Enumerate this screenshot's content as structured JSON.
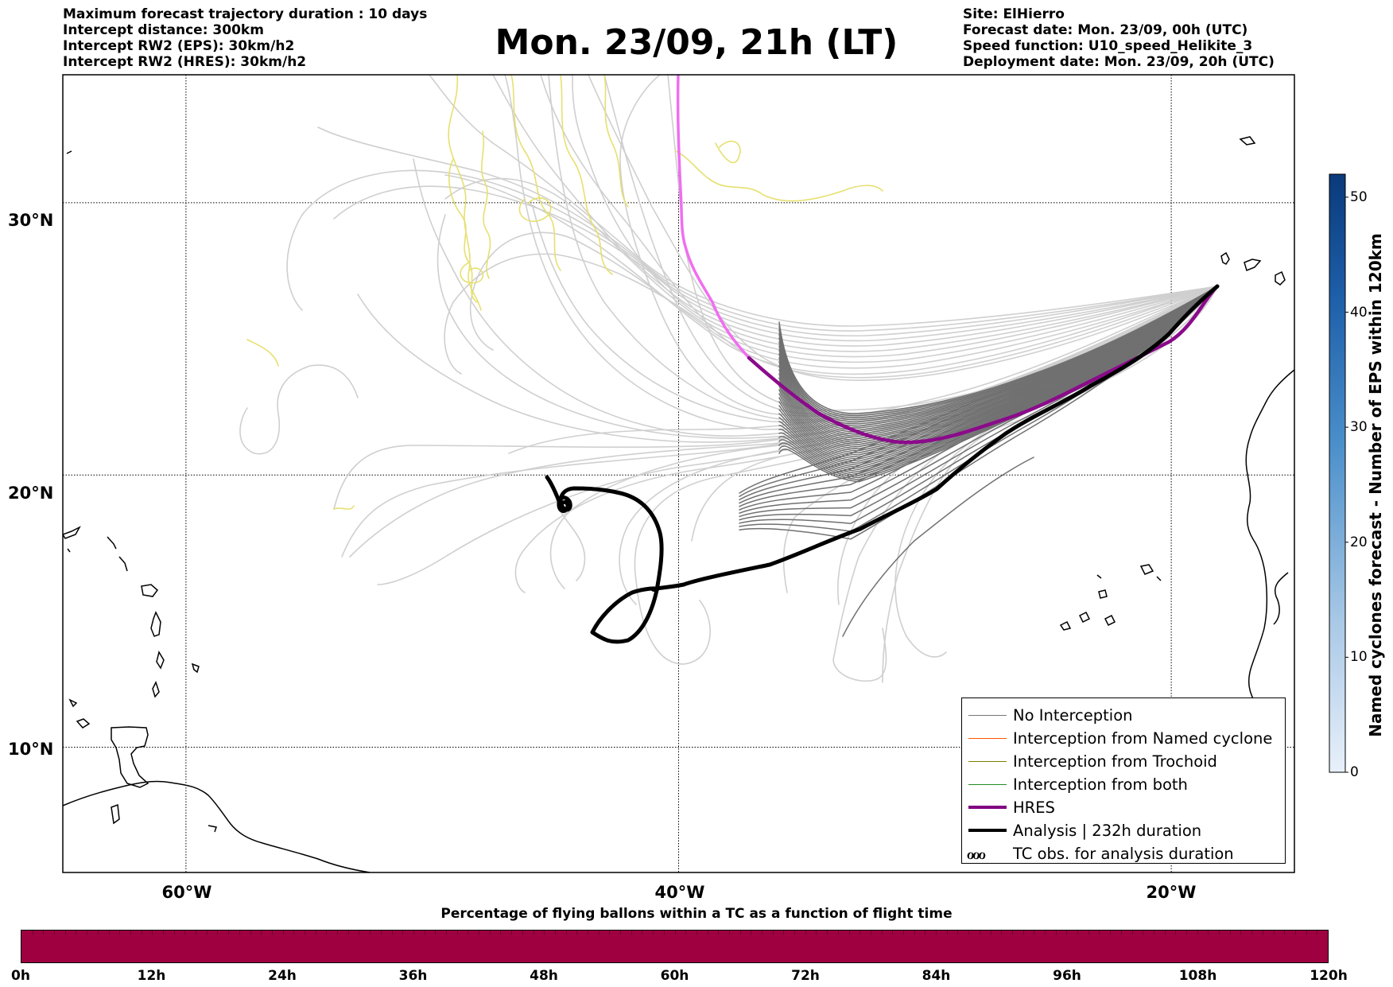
{
  "header": {
    "left": [
      "Maximum forecast trajectory duration : 10 days",
      "Intercept distance: 300km",
      "Intercept RW2 (EPS):  30km/h2",
      "Intercept RW2 (HRES): 30km/h2"
    ],
    "title": "Mon. 23/09, 21h (LT)",
    "right": [
      "Site: ElHierro",
      "Forecast date: Mon. 23/09, 00h (UTC)",
      "Speed function: U10_speed_Helikite_3",
      "Deployment date: Mon. 23/09, 20h (UTC)"
    ]
  },
  "map": {
    "lat_labels": [
      "30°N",
      "20°N",
      "10°N"
    ],
    "lon_labels": [
      "60°W",
      "40°W",
      "20°W"
    ],
    "lat_values": [
      30,
      20,
      10
    ],
    "lon_values": [
      -60,
      -40,
      -20
    ],
    "extent": {
      "lon_min": -65,
      "lon_max": -15,
      "lat_min": 5.4,
      "lat_max": 34.7
    }
  },
  "legend": {
    "items": [
      {
        "label": "No Interception",
        "color": "#777777",
        "style": "thin"
      },
      {
        "label": "Interception from Named cyclone",
        "color": "#ff5500",
        "style": "thin"
      },
      {
        "label": "Interception from Trochoid",
        "color": "#808000",
        "style": "thin"
      },
      {
        "label": "Interception from both",
        "color": "#228b22",
        "style": "thin"
      },
      {
        "label": "HRES",
        "color": "#800080",
        "style": "thick"
      },
      {
        "label": "Analysis | 232h duration",
        "color": "#000000",
        "style": "thick"
      },
      {
        "label": "TC obs. for analysis duration",
        "color": "#000000",
        "style": "symbol",
        "symbol": "ℴℴℴ"
      }
    ]
  },
  "colorbar": {
    "label": "Named cyclones forecast - Number of EPS within 120km",
    "ticks": [
      "0",
      "10",
      "20",
      "30",
      "40",
      "50"
    ],
    "tick_values": [
      0,
      10,
      20,
      30,
      40,
      50
    ],
    "max": 52,
    "color_low": "#e6eef8",
    "color_high": "#0a3a7a"
  },
  "bottom_bar": {
    "title": "Percentage of flying ballons within a TC as a function of flight time",
    "ticks": [
      "0h",
      "12h",
      "24h",
      "36h",
      "48h",
      "60h",
      "72h",
      "84h",
      "96h",
      "108h",
      "120h"
    ],
    "color": "#9e0040"
  },
  "colors": {
    "eps_gray": "#cfcfcf",
    "eps_dark": "#707070",
    "eps_yellow": "#e6e070",
    "hres_light": "#f06ef0",
    "hres": "#8b0a8b",
    "analysis": "#000000"
  }
}
